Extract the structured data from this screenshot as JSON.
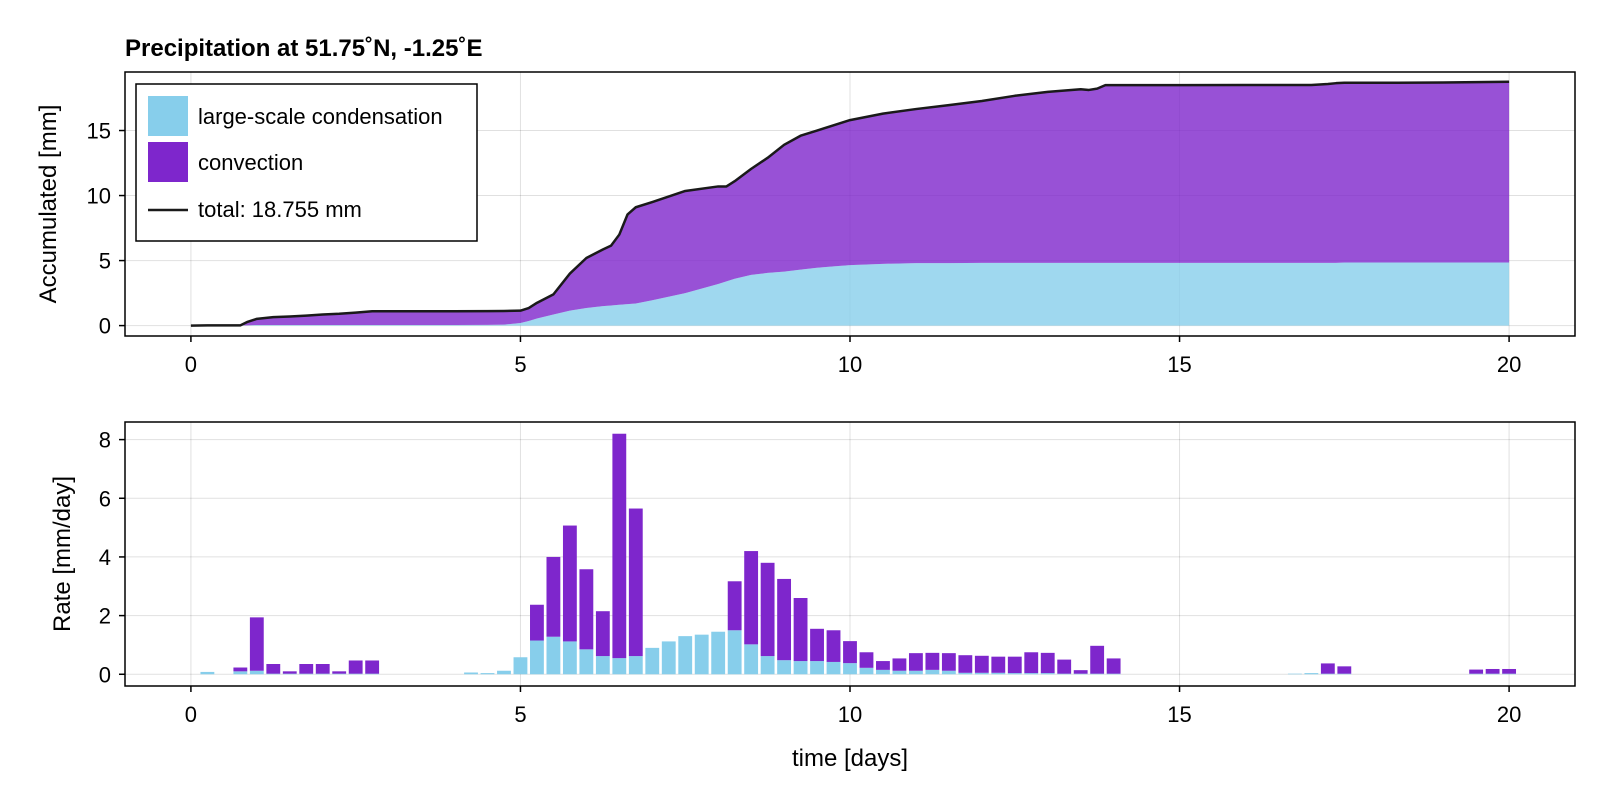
{
  "colors": {
    "large_scale": "#87ceeb",
    "convection": "#7e26cc",
    "total": "#1a1a1a"
  },
  "chart_data": [
    {
      "type": "area",
      "title": "Precipitation at 51.75˚N, -1.25˚E",
      "xlabel": "",
      "ylabel": "Accumulated [mm]",
      "xlim": [
        -1,
        21
      ],
      "ylim": [
        -0.8,
        19.5
      ],
      "xticks": [
        0,
        5,
        10,
        15,
        20
      ],
      "yticks": [
        0,
        5,
        10,
        15
      ],
      "grid": true,
      "legend_position": "top-left",
      "legend": [
        {
          "label": "large-scale condensation",
          "kind": "patch",
          "color": "#87ceeb"
        },
        {
          "label": "convection",
          "kind": "patch",
          "color": "#7e26cc"
        },
        {
          "label": "total: 18.755 mm",
          "kind": "line",
          "color": "#1a1a1a"
        }
      ],
      "x": [
        0,
        0.25,
        0.5,
        0.75,
        0.85,
        1,
        1.25,
        1.5,
        1.75,
        2,
        2.25,
        2.5,
        2.75,
        3,
        3.5,
        4,
        4.5,
        4.75,
        5,
        5.125,
        5.25,
        5.5,
        5.75,
        6,
        6.25,
        6.375,
        6.5,
        6.625,
        6.75,
        7,
        7.5,
        8,
        8.125,
        8.25,
        8.5,
        8.75,
        9,
        9.25,
        9.5,
        9.75,
        10,
        10.5,
        11,
        11.5,
        12,
        12.5,
        13,
        13.5,
        13.625,
        13.75,
        13.875,
        14,
        14.5,
        15,
        16,
        17,
        17.125,
        17.25,
        17.375,
        17.5,
        18,
        19,
        19.5,
        20
      ],
      "series": [
        {
          "name": "large-scale condensation",
          "values": [
            0,
            0.02,
            0.02,
            0.02,
            0.02,
            0.05,
            0.05,
            0.05,
            0.05,
            0.05,
            0.05,
            0.05,
            0.05,
            0.05,
            0.05,
            0.05,
            0.06,
            0.07,
            0.2,
            0.35,
            0.55,
            0.85,
            1.15,
            1.35,
            1.5,
            1.55,
            1.6,
            1.65,
            1.7,
            1.95,
            2.5,
            3.2,
            3.4,
            3.6,
            3.9,
            4.05,
            4.15,
            4.3,
            4.45,
            4.55,
            4.65,
            4.75,
            4.8,
            4.8,
            4.82,
            4.82,
            4.82,
            4.82,
            4.82,
            4.82,
            4.82,
            4.82,
            4.82,
            4.82,
            4.82,
            4.82,
            4.82,
            4.82,
            4.82,
            4.85,
            4.85,
            4.85,
            4.85,
            4.85
          ]
        },
        {
          "name": "convection",
          "values": [
            0,
            0,
            0,
            0,
            0.25,
            0.47,
            0.6,
            0.65,
            0.72,
            0.8,
            0.86,
            0.95,
            1.05,
            1.05,
            1.05,
            1.05,
            1.05,
            1.05,
            0.95,
            1.0,
            1.2,
            1.55,
            2.85,
            3.85,
            4.35,
            4.6,
            5.4,
            6.9,
            7.4,
            7.55,
            7.85,
            7.5,
            7.3,
            7.5,
            8.15,
            8.85,
            9.75,
            10.3,
            10.55,
            10.85,
            11.15,
            11.55,
            11.85,
            12.15,
            12.45,
            12.85,
            13.15,
            13.35,
            13.3,
            13.4,
            13.67,
            13.67,
            13.67,
            13.67,
            13.68,
            13.68,
            13.72,
            13.76,
            13.82,
            13.82,
            13.82,
            13.84,
            13.87,
            13.905
          ]
        },
        {
          "name": "total: 18.755 mm",
          "values": [
            0,
            0.02,
            0.02,
            0.02,
            0.27,
            0.52,
            0.65,
            0.7,
            0.77,
            0.85,
            0.91,
            1.0,
            1.1,
            1.1,
            1.1,
            1.1,
            1.11,
            1.12,
            1.15,
            1.35,
            1.75,
            2.4,
            4.0,
            5.2,
            5.85,
            6.15,
            7.0,
            8.55,
            9.1,
            9.5,
            10.35,
            10.7,
            10.7,
            11.1,
            12.05,
            12.9,
            13.9,
            14.6,
            15.0,
            15.4,
            15.8,
            16.3,
            16.65,
            16.95,
            17.27,
            17.67,
            17.97,
            18.17,
            18.12,
            18.22,
            18.49,
            18.49,
            18.49,
            18.49,
            18.5,
            18.5,
            18.54,
            18.58,
            18.64,
            18.67,
            18.67,
            18.69,
            18.72,
            18.755
          ]
        }
      ]
    },
    {
      "type": "bar",
      "stacked": true,
      "xlabel": "time [days]",
      "ylabel": "Rate [mm/day]",
      "xlim": [
        -1,
        21
      ],
      "ylim": [
        -0.4,
        8.6
      ],
      "xticks": [
        0,
        5,
        10,
        15,
        20
      ],
      "yticks": [
        0,
        2,
        4,
        6,
        8
      ],
      "grid": true,
      "bar_width_days": 0.21,
      "x": [
        0.25,
        0.75,
        1,
        1.25,
        1.5,
        1.75,
        2,
        2.25,
        2.5,
        2.75,
        4.25,
        4.5,
        4.75,
        5,
        5.25,
        5.5,
        5.75,
        6,
        6.25,
        6.5,
        6.75,
        7,
        7.25,
        7.5,
        7.75,
        8,
        8.25,
        8.5,
        8.75,
        9,
        9.25,
        9.5,
        9.75,
        10,
        10.25,
        10.5,
        10.75,
        11,
        11.25,
        11.5,
        11.75,
        12,
        12.25,
        12.5,
        12.75,
        13,
        13.25,
        13.5,
        13.75,
        14,
        16.75,
        17,
        17.25,
        17.5,
        19.5,
        19.75,
        20
      ],
      "series": [
        {
          "name": "large-scale condensation",
          "values": [
            0.08,
            0.1,
            0.12,
            0.02,
            0.02,
            0.02,
            0.02,
            0.02,
            0.02,
            0.02,
            0.06,
            0.04,
            0.12,
            0.58,
            1.15,
            1.28,
            1.12,
            0.85,
            0.62,
            0.55,
            0.62,
            0.9,
            1.12,
            1.3,
            1.35,
            1.45,
            1.5,
            1.02,
            0.62,
            0.48,
            0.45,
            0.45,
            0.42,
            0.38,
            0.22,
            0.15,
            0.12,
            0.12,
            0.15,
            0.12,
            0.05,
            0.05,
            0.05,
            0.04,
            0.04,
            0.04,
            0.02,
            0.02,
            0.02,
            0.02,
            0.02,
            0.04,
            0.02,
            0.02,
            0.02,
            0.02,
            0.02
          ]
        },
        {
          "name": "convection",
          "values": [
            0,
            0.13,
            1.82,
            0.33,
            0.08,
            0.33,
            0.33,
            0.08,
            0.45,
            0.45,
            0,
            0,
            0,
            0,
            1.22,
            2.72,
            3.95,
            2.73,
            1.53,
            7.65,
            5.03,
            0,
            0,
            0,
            0,
            0,
            1.67,
            3.18,
            3.18,
            2.77,
            2.15,
            1.1,
            1.08,
            0.75,
            0.53,
            0.3,
            0.42,
            0.6,
            0.58,
            0.6,
            0.6,
            0.58,
            0.55,
            0.56,
            0.71,
            0.69,
            0.48,
            0.12,
            0.95,
            0.52,
            0,
            0,
            0.35,
            0.25,
            0.14,
            0.16,
            0.16
          ]
        }
      ]
    }
  ]
}
